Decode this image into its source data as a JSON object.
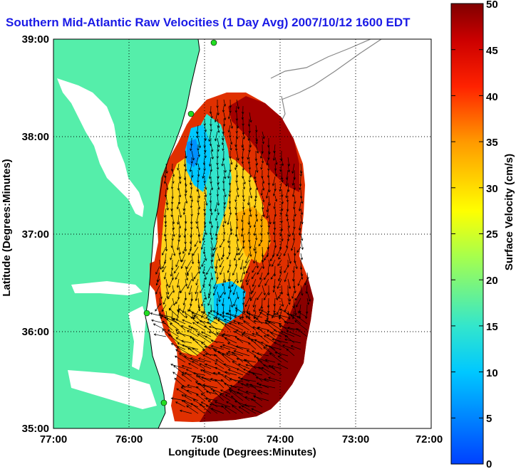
{
  "title": "Southern Mid-Atlantic Raw Velocities (1 Day Avg) 2007/10/12 1600 EDT",
  "map": {
    "xlabel": "Longitude (Degrees:Minutes)",
    "ylabel": "Latitude (Degrees:Minutes)",
    "x_ticks": [
      "77:00",
      "76:00",
      "75:00",
      "74:00",
      "73:00",
      "72:00"
    ],
    "y_ticks": [
      "39:00",
      "38:00",
      "37:00",
      "36:00",
      "35:00"
    ],
    "x_range": [
      -77,
      -72
    ],
    "y_range": [
      35,
      39
    ],
    "grid": "dotted"
  },
  "colorbar": {
    "label": "Surface Velocity (cm/s)",
    "ticks": [
      "50",
      "45",
      "40",
      "35",
      "30",
      "25",
      "20",
      "15",
      "10",
      "5",
      "0"
    ],
    "range": [
      0,
      50
    ],
    "colormap": "jet"
  },
  "colors": {
    "land": "#55eeaa",
    "title": "#1a1ae6",
    "station": "#22dd22",
    "vectors": "#000000"
  }
}
